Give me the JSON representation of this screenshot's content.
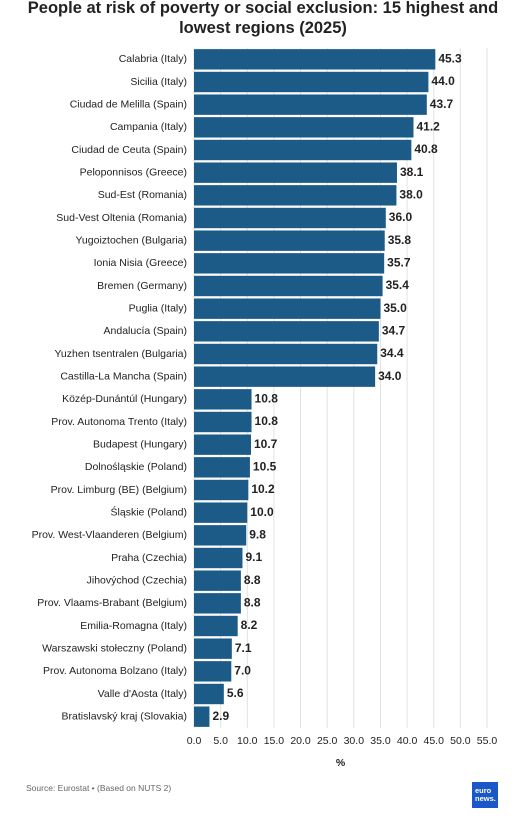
{
  "chart_data": {
    "type": "barh",
    "title": "People at risk of poverty or social exclusion: 15 highest and lowest regions (2025)",
    "categories": [
      "Calabria (Italy)",
      "Sicilia (Italy)",
      "Ciudad de Melilla (Spain)",
      "Campania (Italy)",
      "Ciudad de Ceuta (Spain)",
      "Peloponnisos (Greece)",
      "Sud-Est (Romania)",
      "Sud-Vest Oltenia (Romania)",
      "Yugoiztochen (Bulgaria)",
      "Ionia Nisia (Greece)",
      "Bremen (Germany)",
      "Puglia (Italy)",
      "Andalucía (Spain)",
      "Yuzhen tsentralen (Bulgaria)",
      "Castilla-La Mancha (Spain)",
      "Közép-Dunántúl (Hungary)",
      "Prov. Autonoma Trento (Italy)",
      "Budapest (Hungary)",
      "Dolnośląskie (Poland)",
      "Prov. Limburg (BE) (Belgium)",
      "Śląskie (Poland)",
      "Prov. West-Vlaanderen (Belgium)",
      "Praha (Czechia)",
      "Jihovýchod (Czechia)",
      "Prov. Vlaams-Brabant (Belgium)",
      "Emilia-Romagna (Italy)",
      "Warszawski stołeczny (Poland)",
      "Prov. Autonoma Bolzano (Italy)",
      "Valle d'Aosta (Italy)",
      "Bratislavský kraj (Slovakia)"
    ],
    "values": [
      45.3,
      44.0,
      43.7,
      41.2,
      40.8,
      38.1,
      38.0,
      36.0,
      35.8,
      35.7,
      35.4,
      35.0,
      34.7,
      34.4,
      34.0,
      10.8,
      10.8,
      10.7,
      10.5,
      10.2,
      10.0,
      9.8,
      9.1,
      8.8,
      8.8,
      8.2,
      7.1,
      7.0,
      5.6,
      2.9
    ],
    "value_labels": [
      "45.3",
      "44.0",
      "43.7",
      "41.2",
      "40.8",
      "38.1",
      "38.0",
      "36.0",
      "35.8",
      "35.7",
      "35.4",
      "35.0",
      "34.7",
      "34.4",
      "34.0",
      "10.8",
      "10.8",
      "10.7",
      "10.5",
      "10.2",
      "10.0",
      "9.8",
      "9.1",
      "8.8",
      "8.8",
      "8.2",
      "7.1",
      "7.0",
      "5.6",
      "2.9"
    ],
    "color": "#1c5a88",
    "xlabel": "%",
    "xlim": [
      0,
      55
    ],
    "xticks": [
      {
        "value": 0,
        "label": "0.0"
      },
      {
        "value": 5,
        "label": "5.0"
      },
      {
        "value": 10,
        "label": "10.0"
      },
      {
        "value": 15,
        "label": "15.0"
      },
      {
        "value": 20,
        "label": "20.0"
      },
      {
        "value": 25,
        "label": "25.0"
      },
      {
        "value": 30,
        "label": "30.0"
      },
      {
        "value": 35,
        "label": "35.0"
      },
      {
        "value": 40,
        "label": "40.0"
      },
      {
        "value": 45,
        "label": "45.0"
      },
      {
        "value": 50,
        "label": "50.0"
      },
      {
        "value": 55,
        "label": "55.0"
      }
    ],
    "grid": true,
    "source": "Source: Eurostat • (Based on NUTS 2)",
    "logo": "euro news."
  }
}
